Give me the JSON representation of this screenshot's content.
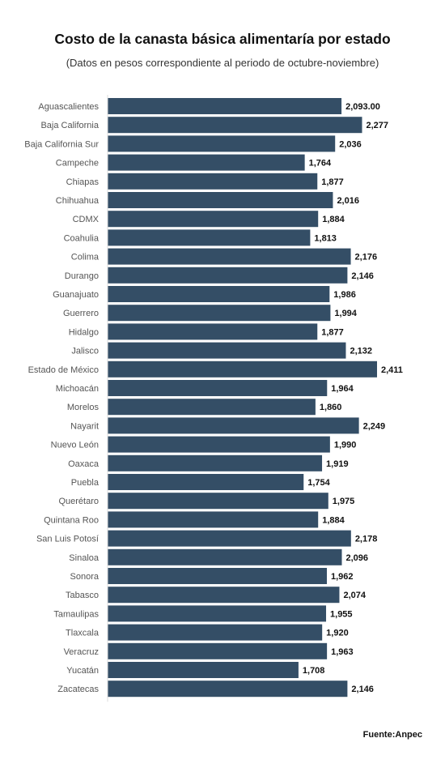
{
  "chart_data": {
    "type": "bar",
    "orientation": "horizontal",
    "title": "Costo de la canasta básica alimentaría por estado",
    "subtitle": "(Datos en pesos correspondiente al periodo de octubre-noviembre)",
    "categories": [
      "Aguascalientes",
      "Baja California",
      "Baja California Sur",
      "Campeche",
      "Chiapas",
      "Chihuahua",
      "CDMX",
      "Coahulia",
      "Colima",
      "Durango",
      "Guanajuato",
      "Guerrero",
      "Hidalgo",
      "Jalisco",
      "Estado de México",
      "Michoacán",
      "Morelos",
      "Nayarit",
      "Nuevo León",
      "Oaxaca",
      "Puebla",
      "Querétaro",
      "Quintana Roo",
      "San Luis Potosí",
      "Sinaloa",
      "Sonora",
      "Tabasco",
      "Tamaulipas",
      "Tlaxcala",
      "Veracruz",
      "Yucatán",
      "Zacatecas"
    ],
    "values": [
      2093,
      2277,
      2036,
      1764,
      1877,
      2016,
      1884,
      1813,
      2176,
      2146,
      1986,
      1994,
      1877,
      2132,
      2411,
      1964,
      1860,
      2249,
      1990,
      1919,
      1754,
      1975,
      1884,
      2178,
      2096,
      1962,
      2074,
      1955,
      1920,
      1963,
      1708,
      2146
    ],
    "value_labels": [
      "2,093.00",
      "2,277",
      "2,036",
      "1,764",
      "1,877",
      "2,016",
      "1,884",
      "1,813",
      "2,176",
      "2,146",
      "1,986",
      "1,994",
      "1,877",
      "2,132",
      "2,411",
      "1,964",
      "1,860",
      "2,249",
      "1,990",
      "1,919",
      "1,754",
      "1,975",
      "1,884",
      "2,178",
      "2,096",
      "1,962",
      "2,074",
      "1,955",
      "1,920",
      "1,963",
      "1,708",
      "2,146"
    ],
    "xlim": [
      0,
      2411
    ],
    "grid": false,
    "legend": "none",
    "bar_color": "#344e66"
  },
  "source": "Fuente:Anpec"
}
